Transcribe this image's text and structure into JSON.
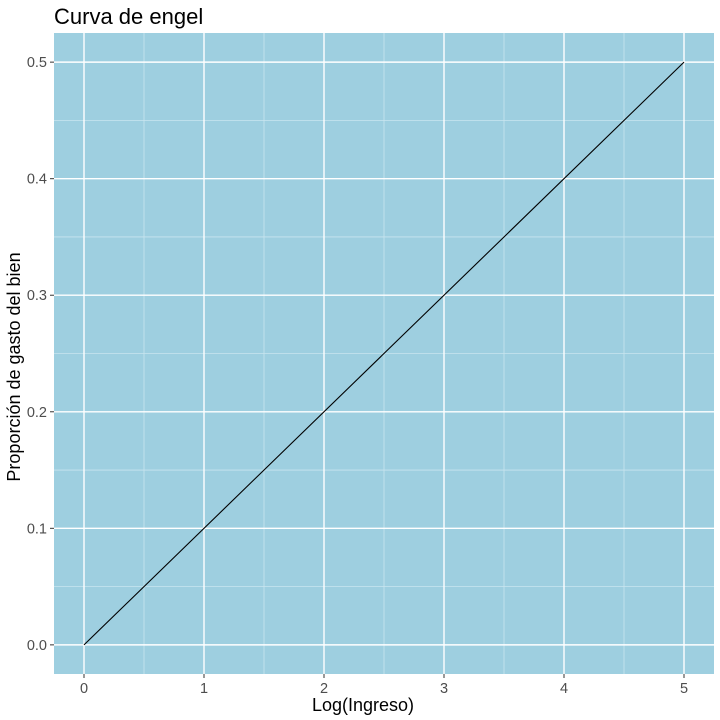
{
  "chart_data": {
    "type": "line",
    "title": "Curva de engel",
    "xlabel": "Log(Ingreso)",
    "ylabel": "Proporción de gasto del bien",
    "xlim": [
      -0.25,
      5.25
    ],
    "ylim": [
      -0.025,
      0.525
    ],
    "x_ticks": [
      0,
      1,
      2,
      3,
      4,
      5
    ],
    "x_tick_labels": [
      "0",
      "1",
      "2",
      "3",
      "4",
      "5"
    ],
    "y_ticks": [
      0.0,
      0.1,
      0.2,
      0.3,
      0.4,
      0.5
    ],
    "y_tick_labels": [
      "0.0",
      "0.1",
      "0.2",
      "0.3",
      "0.4",
      "0.5"
    ],
    "x_minor": [
      0.5,
      1.5,
      2.5,
      3.5,
      4.5
    ],
    "y_minor": [
      0.05,
      0.15,
      0.25,
      0.35,
      0.45
    ],
    "grid": true,
    "series": [
      {
        "x": [
          0,
          5
        ],
        "y": [
          0.0,
          0.5
        ]
      }
    ],
    "colors": {
      "panel_background": "#9ecfe0",
      "grid_major": "#ffffff",
      "grid_minor": "#c9e5ef",
      "line": "#000000",
      "tick_text": "#4d4d4d",
      "tick_mark": "#333333"
    }
  }
}
